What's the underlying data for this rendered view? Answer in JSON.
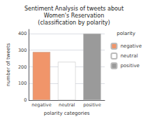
{
  "chart_data": {
    "type": "bar",
    "title": "Sentiment Analysis of tweets about\nWomen's Reservation\n(classification by polarity)",
    "categories": [
      "negative",
      "neutral",
      "positive"
    ],
    "series": [
      {
        "name": "negative",
        "color": "#F0956A",
        "values": [
          290,
          null,
          null
        ]
      },
      {
        "name": "neutral",
        "color": "#FFFFFF",
        "values": [
          null,
          230,
          null
        ]
      },
      {
        "name": "positive",
        "color": "#9A9A9A",
        "values": [
          null,
          null,
          400
        ]
      }
    ],
    "xlabel": "polarity categories",
    "ylabel": "number of tweets",
    "ylim": [
      0,
      425
    ],
    "yticks": [
      0,
      100,
      200,
      300,
      400
    ],
    "grid": true,
    "legend": "right",
    "legend_title": "polarity"
  }
}
